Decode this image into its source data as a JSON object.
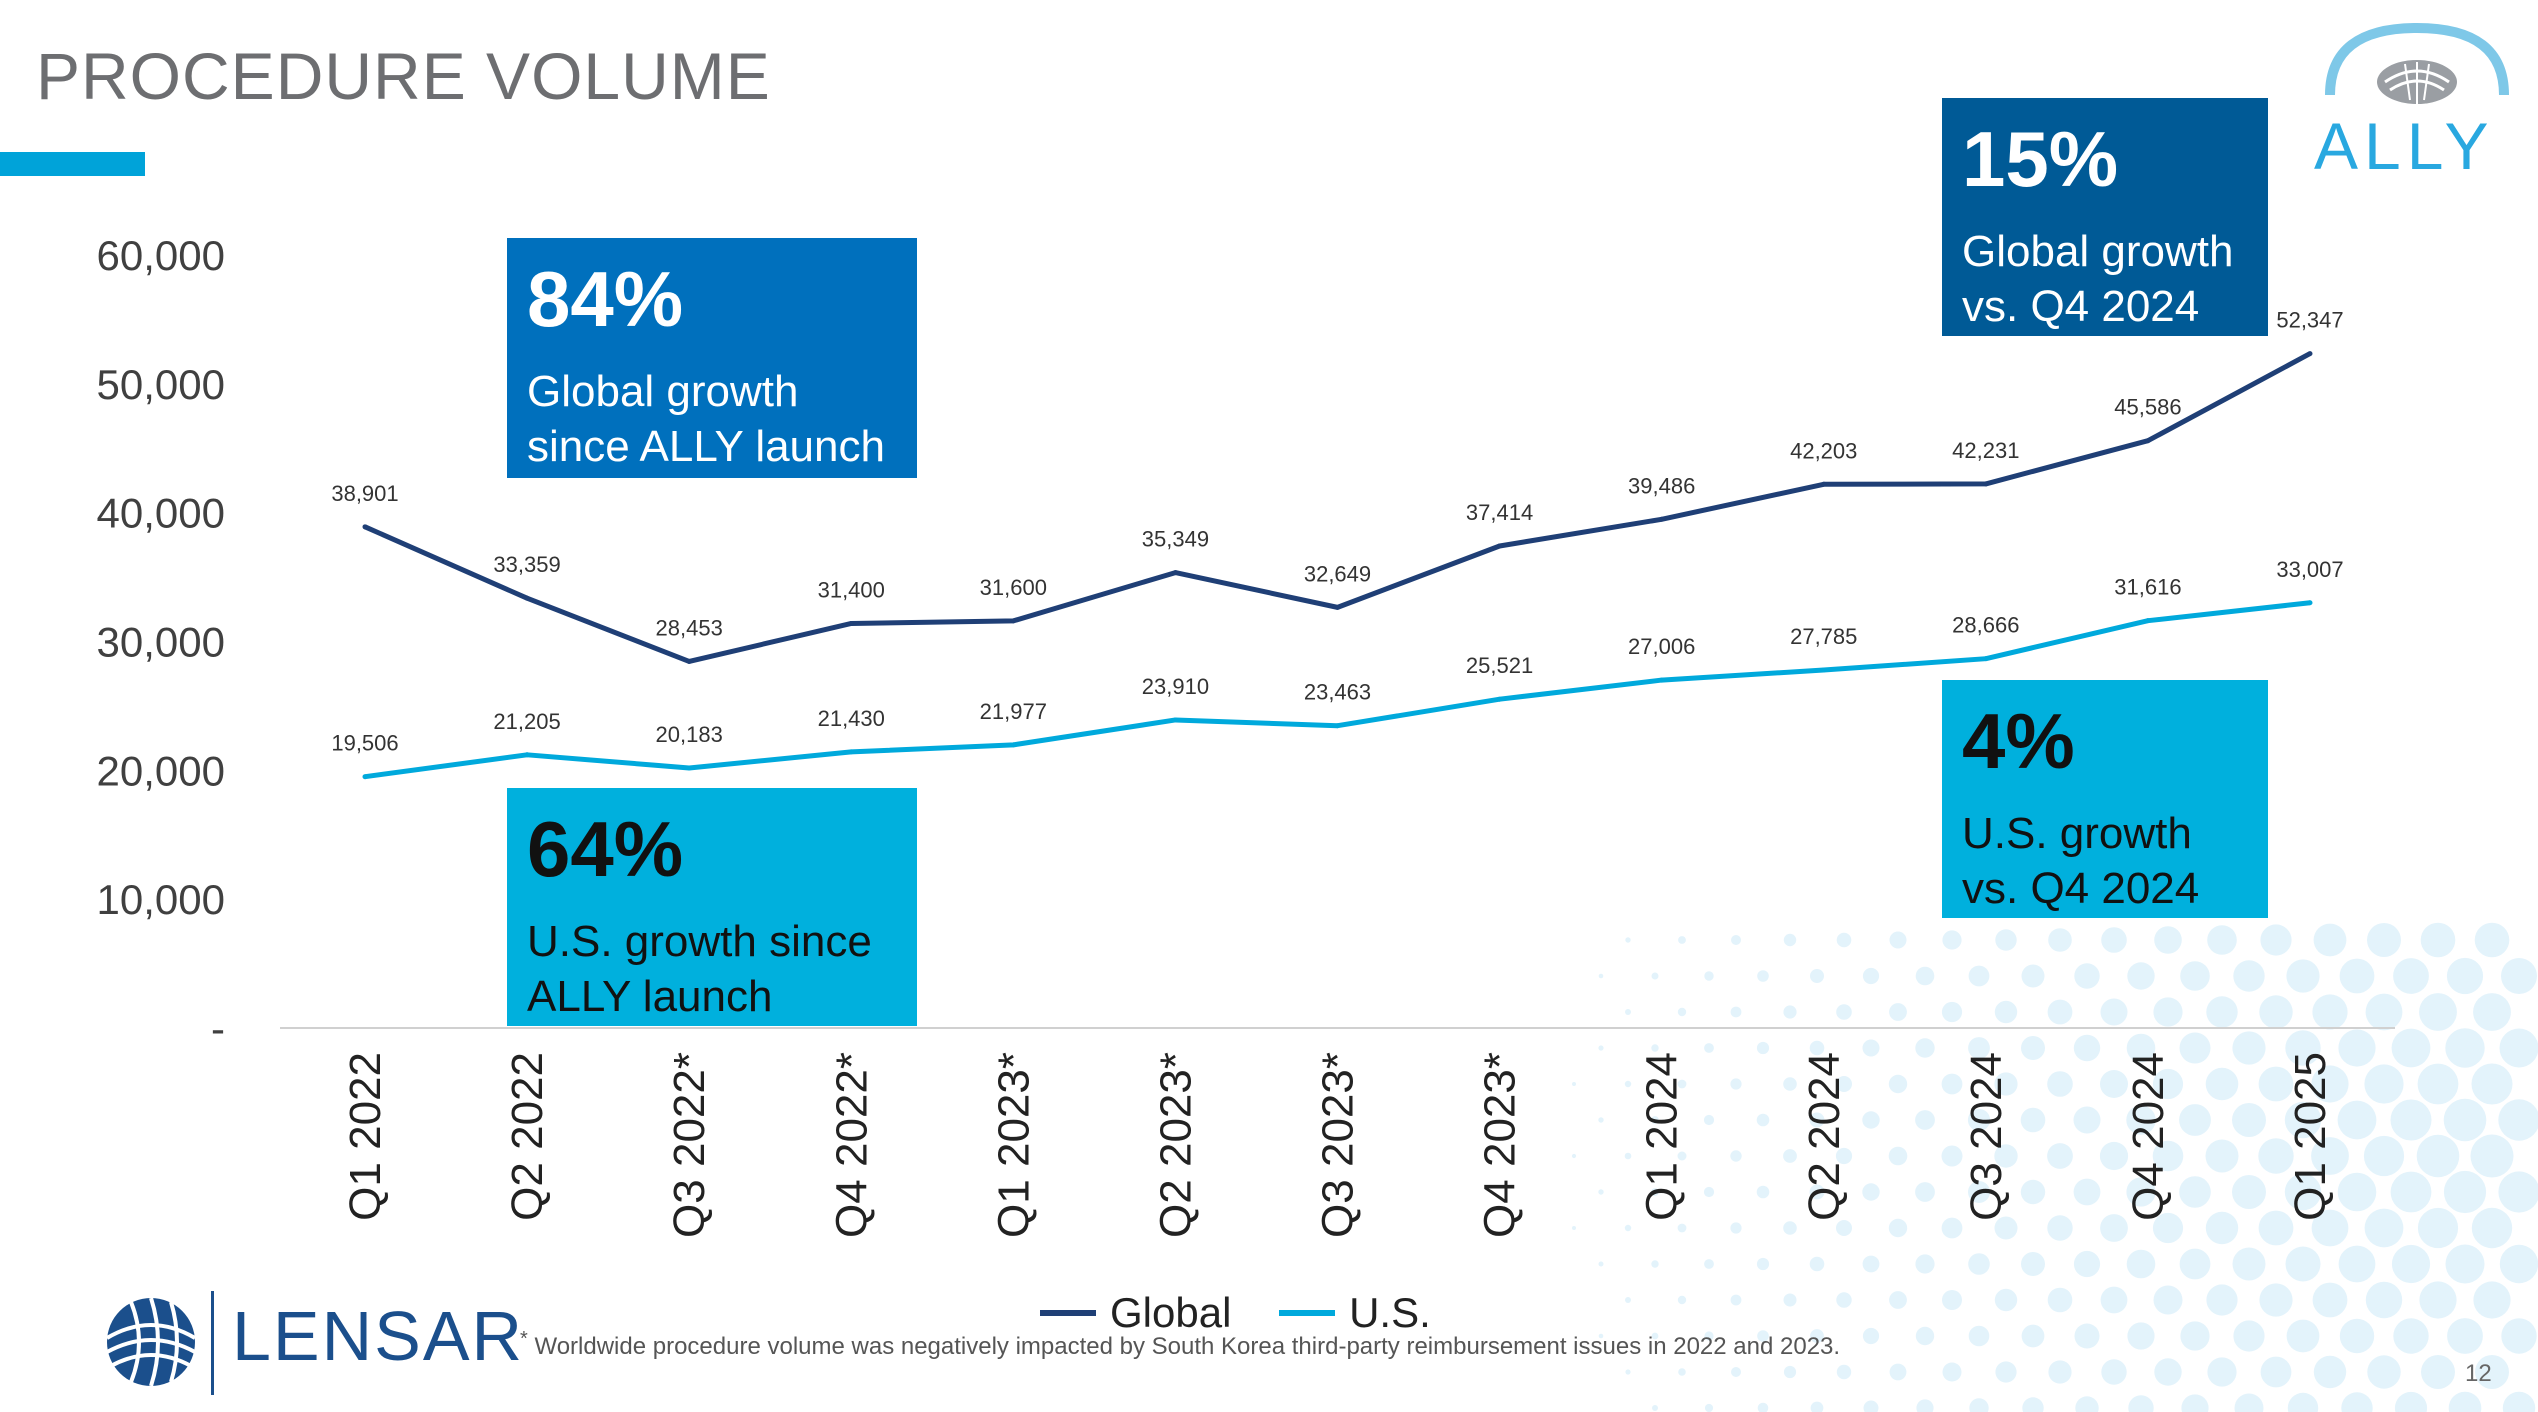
{
  "page": {
    "title": "PROCEDURE VOLUME",
    "page_number": "12",
    "footnote_marker": "*",
    "footnote": "Worldwide procedure volume was negatively impacted by South Korea third-party reimbursement issues in 2022 and 2023.",
    "brand_logo_text": "LENSAR",
    "product_logo_text": "ALLY"
  },
  "callouts": [
    {
      "pct": "84%",
      "text": "Global growth since ALLY launch"
    },
    {
      "pct": "64%",
      "text": "U.S. growth since ALLY launch"
    },
    {
      "pct": "15%",
      "text": "Global growth vs. Q4 2024"
    },
    {
      "pct": "4%",
      "text": "U.S. growth vs. Q4 2024"
    }
  ],
  "legend": {
    "global": "Global",
    "us": "U.S."
  },
  "colors": {
    "global": "#1f3f76",
    "us": "#00a9dc",
    "accent": "#00a3d9",
    "title": "#6d6e71"
  },
  "chart_data": {
    "type": "line",
    "categories": [
      "Q1 2022",
      "Q2 2022",
      "Q3 2022*",
      "Q4 2022*",
      "Q1 2023*",
      "Q2 2023*",
      "Q3 2023*",
      "Q4 2023*",
      "Q1 2024",
      "Q2 2024",
      "Q3 2024",
      "Q4 2024",
      "Q1 2025"
    ],
    "series": [
      {
        "name": "Global",
        "values": [
          38901,
          33359,
          28453,
          31400,
          31600,
          35349,
          32649,
          37414,
          39486,
          42203,
          42231,
          45586,
          52347
        ]
      },
      {
        "name": "U.S.",
        "values": [
          19506,
          21205,
          20183,
          21430,
          21977,
          23910,
          23463,
          25521,
          27006,
          27785,
          28666,
          31616,
          33007
        ]
      }
    ],
    "value_labels": {
      "Global": [
        "38,901",
        "33,359",
        "28,453",
        "31,400",
        "31,600",
        "35,349",
        "32,649",
        "37,414",
        "39,486",
        "42,203",
        "42,231",
        "45,586",
        "52,347"
      ],
      "U.S.": [
        "19,506",
        "21,205",
        "20,183",
        "21,430",
        "21,977",
        "23,910",
        "23,463",
        "25,521",
        "27,006",
        "27,785",
        "28,666",
        "31,616",
        "33,007"
      ]
    },
    "y_ticks": [
      0,
      10000,
      20000,
      30000,
      40000,
      50000,
      60000
    ],
    "y_tick_labels": [
      "-",
      "10,000",
      "20,000",
      "30,000",
      "40,000",
      "50,000",
      "60,000"
    ],
    "ylim": [
      0,
      60000
    ],
    "title": "",
    "xlabel": "",
    "ylabel": "",
    "grid": false,
    "legend_position": "bottom"
  }
}
